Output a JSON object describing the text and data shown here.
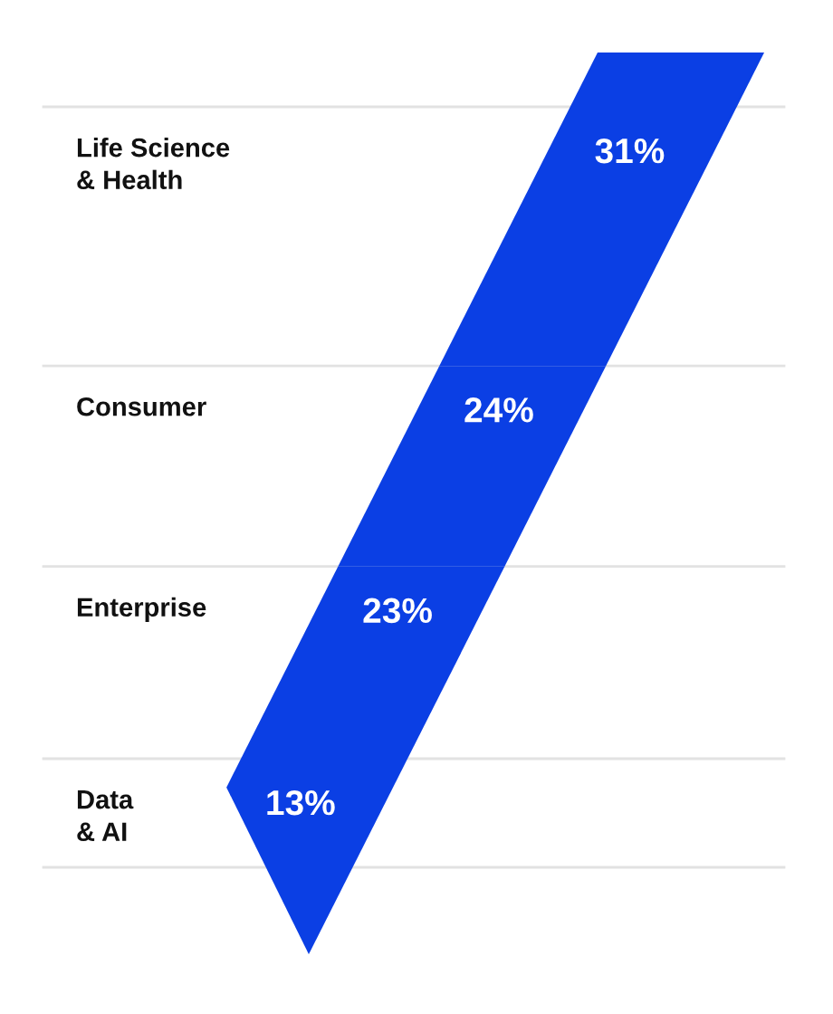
{
  "chart_data": {
    "type": "other",
    "categories": [
      "Life Science\n& Health",
      "Consumer",
      "Enterprise",
      "Data\n& AI"
    ],
    "values": [
      31,
      24,
      23,
      13
    ],
    "value_labels": [
      "31%",
      "24%",
      "23%",
      "13%"
    ],
    "color": "#0b3fe4"
  }
}
